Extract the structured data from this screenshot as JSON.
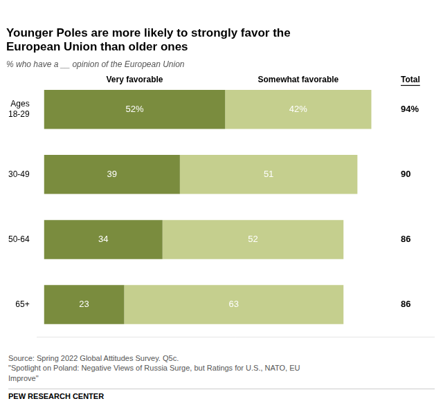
{
  "chart_data": {
    "type": "bar",
    "orientation": "horizontal",
    "stacked": true,
    "title": "Younger Poles are more likely to strongly favor the\nEuropean Union than older ones",
    "subtitle": "% who have a __ opinion of the European Union",
    "categories": [
      "Ages\n18-29",
      "30-49",
      "50-64",
      "65+"
    ],
    "series": [
      {
        "name": "Very favorable",
        "color": "#7a8c3e",
        "values": [
          52,
          39,
          34,
          23
        ],
        "value_labels": [
          "52%",
          "39",
          "34",
          "23"
        ]
      },
      {
        "name": "Somewhat favorable",
        "color": "#c5cf8e",
        "values": [
          42,
          51,
          52,
          63
        ],
        "value_labels": [
          "42%",
          "51",
          "52",
          "63"
        ]
      }
    ],
    "totals": {
      "name": "Total",
      "values": [
        94,
        90,
        86,
        86
      ],
      "value_labels": [
        "94%",
        "90",
        "86",
        "86"
      ]
    },
    "data_labels": true,
    "xlim": [
      -2,
      112
    ],
    "tick_labels": "y",
    "grid": false,
    "source": "Source: Spring 2022 Global Attitudes Survey. Q5c.\n\"Spotlight on Poland: Negative Views of Russia Surge, but Ratings for U.S., NATO, EU\nImprove\"",
    "footer": "PEW RESEARCH CENTER"
  }
}
